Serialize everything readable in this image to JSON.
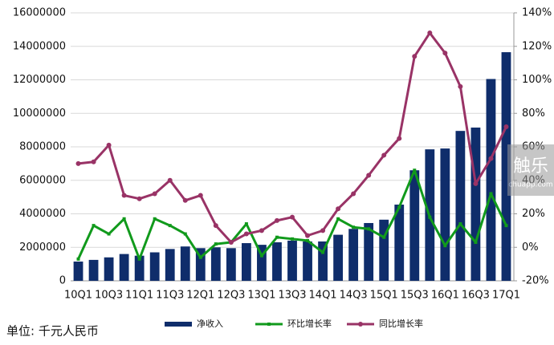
{
  "chart_data": {
    "type": "bar-line",
    "note": "单位: 千元人民币",
    "watermark": {
      "title": "触乐",
      "url": "chuapp.com"
    },
    "categories": [
      "10Q1",
      null,
      "10Q3",
      null,
      "11Q1",
      null,
      "11Q3",
      null,
      "12Q1",
      null,
      "12Q3",
      null,
      "13Q1",
      null,
      "13Q3",
      null,
      "14Q1",
      null,
      "14Q3",
      null,
      "15Q1",
      null,
      "15Q3",
      null,
      "16Q1",
      null,
      "16Q3",
      null,
      "17Q1"
    ],
    "series": [
      {
        "name": "净收入",
        "type": "bar",
        "color": "#0f2d6b",
        "values": [
          1150000,
          1250000,
          1400000,
          1600000,
          1500000,
          1700000,
          1900000,
          2050000,
          1950000,
          2000000,
          1950000,
          2250000,
          2150000,
          2300000,
          2400000,
          2350000,
          2350000,
          2750000,
          3100000,
          3450000,
          3650000,
          4550000,
          6600000,
          7850000,
          7900000,
          8950000,
          9150000,
          12050000,
          13650000
        ]
      },
      {
        "name": "环比增长率",
        "type": "line",
        "axis": "y2",
        "marker": "square",
        "color": "#119a1c",
        "values": [
          -7,
          13,
          8,
          17,
          -7,
          17,
          13,
          8,
          -6,
          2,
          3,
          14,
          -5,
          6,
          5,
          4,
          -3,
          17,
          12,
          11,
          6,
          24,
          46,
          18,
          1,
          14,
          3,
          32,
          13
        ]
      },
      {
        "name": "同比增长率",
        "type": "line",
        "axis": "y2",
        "marker": "circle",
        "color": "#993366",
        "values": [
          50,
          51,
          61,
          31,
          29,
          32,
          40,
          28,
          31,
          13,
          3,
          8,
          10,
          16,
          18,
          7,
          10,
          23,
          32,
          43,
          55,
          65,
          114,
          128,
          116,
          96,
          38,
          53,
          72
        ]
      }
    ],
    "ylim": [
      0,
      16000000
    ],
    "yticks": [
      0,
      2000000,
      4000000,
      6000000,
      8000000,
      10000000,
      12000000,
      14000000,
      16000000
    ],
    "y2lim": [
      -20,
      140
    ],
    "y2ticks": [
      {
        "value": -20,
        "label": "-20%"
      },
      {
        "value": 0,
        "label": "0%"
      },
      {
        "value": 20,
        "label": "20%"
      },
      {
        "value": 40,
        "label": "40%"
      },
      {
        "value": 60,
        "label": "60%"
      },
      {
        "value": 80,
        "label": "80%"
      },
      {
        "value": 100,
        "label": "100%"
      },
      {
        "value": 120,
        "label": "120%"
      },
      {
        "value": 140,
        "label": "140%"
      }
    ],
    "grid": true,
    "legend": "bottom"
  }
}
